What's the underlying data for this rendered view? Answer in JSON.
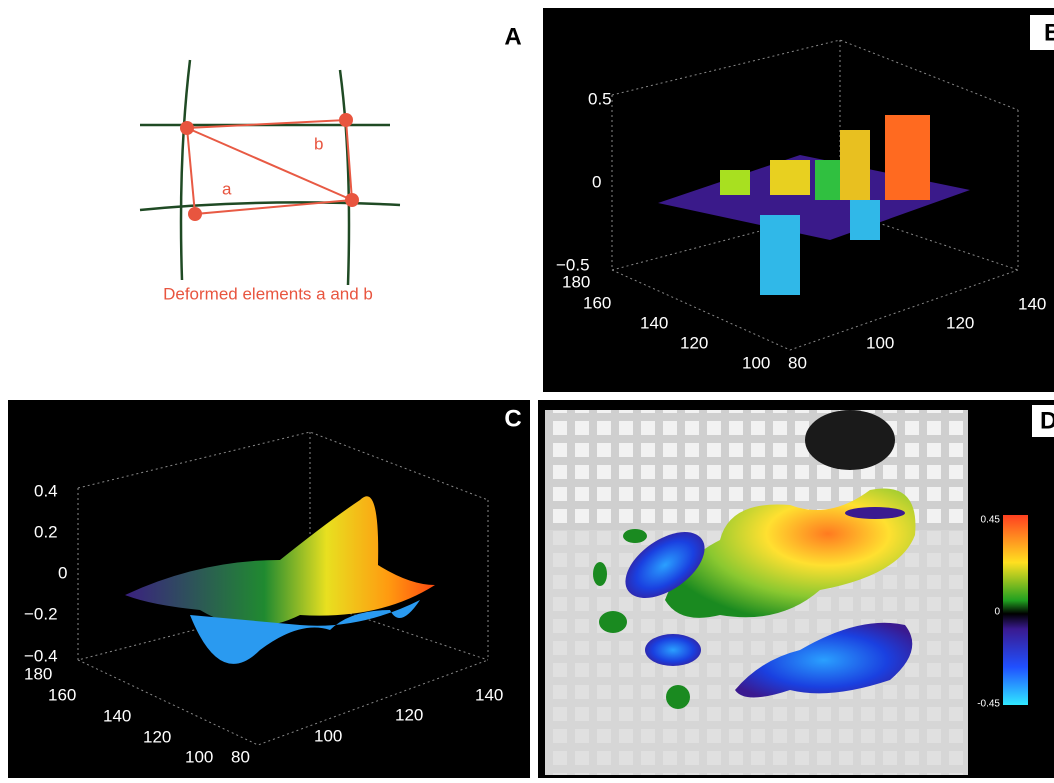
{
  "panels": [
    {
      "label": "A",
      "caption": "Deformed elements a and b",
      "element_labels": [
        "a",
        "b"
      ]
    },
    {
      "label": "B",
      "z_ticks": [
        "0.5",
        "0",
        "−0.5"
      ],
      "y_ticks": [
        "180",
        "160",
        "140",
        "120",
        "100"
      ],
      "x_ticks": [
        "80",
        "100",
        "120",
        "140"
      ]
    },
    {
      "label": "C",
      "z_ticks": [
        "0.4",
        "0.2",
        "0",
        "−0.2",
        "−0.4"
      ],
      "y_ticks": [
        "180",
        "160",
        "140",
        "120",
        "100"
      ],
      "x_ticks": [
        "80",
        "100",
        "120",
        "140"
      ]
    },
    {
      "label": "D",
      "colorbar_ticks": [
        "0.45",
        "0",
        "-0.45"
      ]
    }
  ]
}
